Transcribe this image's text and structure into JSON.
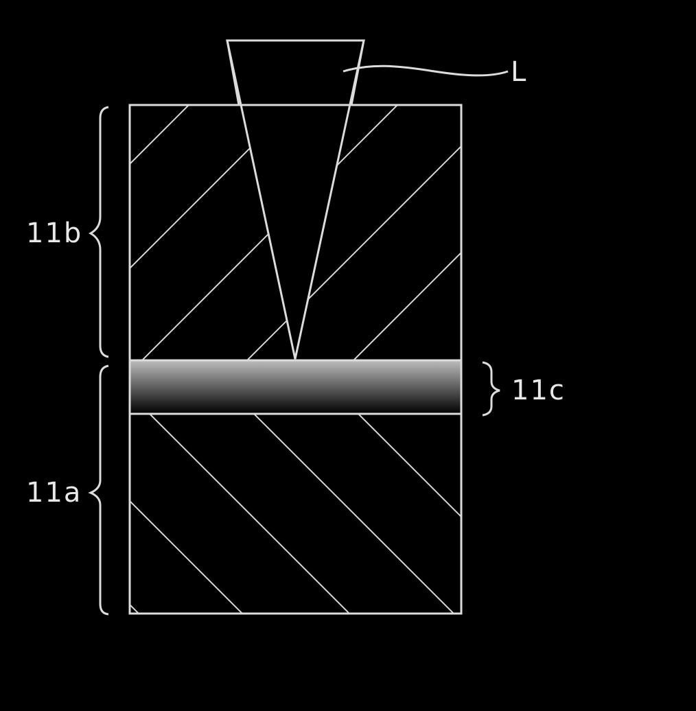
{
  "labels": {
    "beam": "L",
    "upper_layer": "11b",
    "middle_layer": "11c",
    "lower_layer": "11a"
  },
  "colors": {
    "background": "#000000",
    "line": "#dcdcdc",
    "gradient_top": "#bdbdbd",
    "gradient_bottom": "#000000"
  }
}
